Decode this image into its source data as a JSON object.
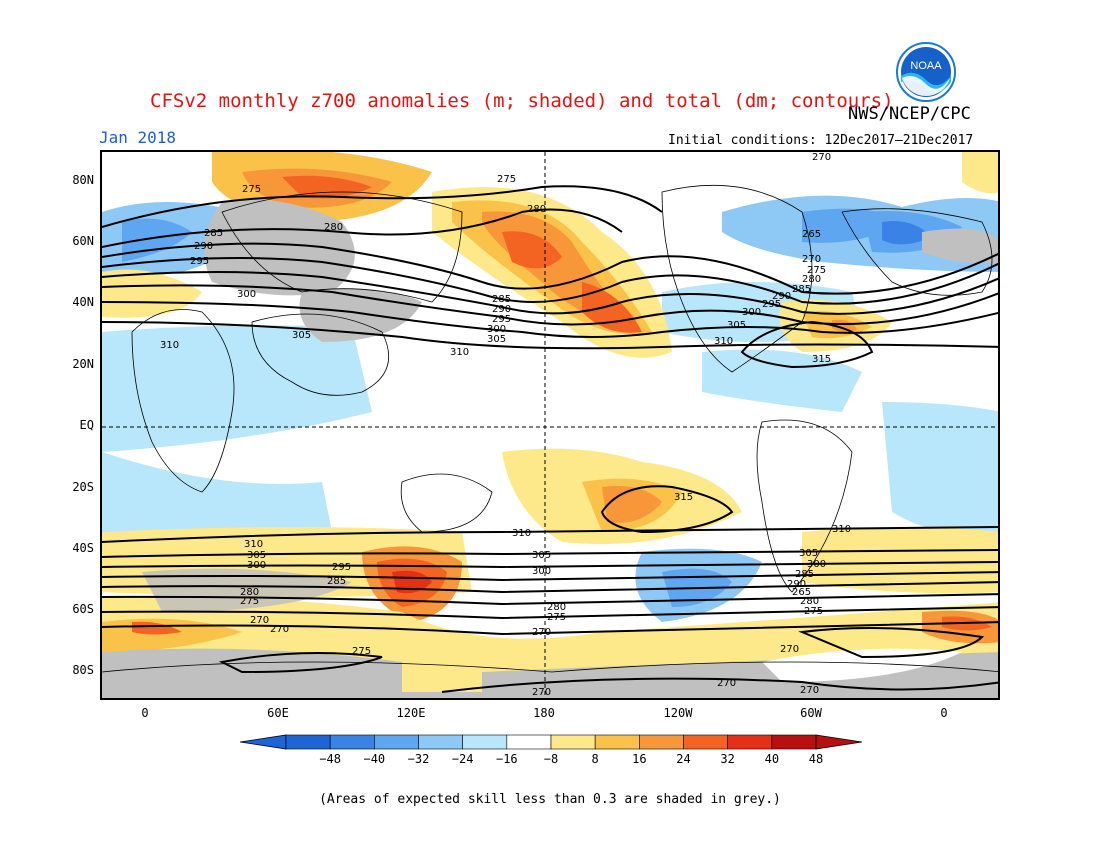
{
  "header": {
    "title": "CFSv2 monthly z700 anomalies (m; shaded) and total (dm; contours)",
    "agency": "NWS/NCEP/CPC",
    "month": "Jan 2018",
    "initial_conditions": "Initial conditions: 12Dec2017–21Dec2017",
    "logo_text": "NOAA"
  },
  "axes": {
    "lat_labels": [
      "80N",
      "60N",
      "40N",
      "20N",
      "EQ",
      "20S",
      "40S",
      "60S",
      "80S"
    ],
    "lon_labels": [
      "0",
      "60E",
      "120E",
      "180",
      "120W",
      "60W",
      "0"
    ]
  },
  "colorbar": {
    "labels": [
      "−48",
      "−40",
      "−32",
      "−24",
      "−16",
      "−8",
      "8",
      "16",
      "24",
      "32",
      "40",
      "48"
    ],
    "colors": [
      "#1e64d6",
      "#3a82e6",
      "#5ea6ef",
      "#8ec8f4",
      "#b8e6fa",
      "#ffffff",
      "#fde98a",
      "#fbc24a",
      "#f8963a",
      "#f36423",
      "#e43016",
      "#b71010"
    ],
    "grey_color": "#c0c0c0"
  },
  "contour_labels": [
    "275",
    "270",
    "280",
    "285",
    "290",
    "295",
    "300",
    "305",
    "310",
    "315",
    "265"
  ],
  "footnote": "(Areas of expected skill less than 0.3 are shaded in grey.)"
}
